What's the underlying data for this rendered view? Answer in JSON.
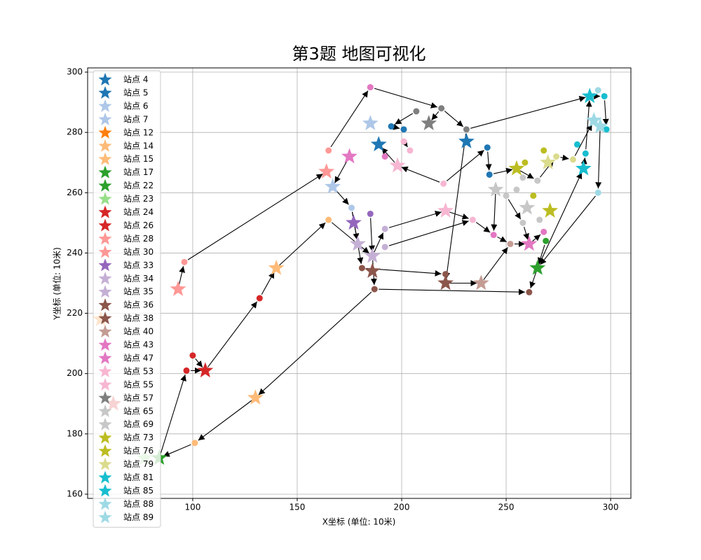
{
  "chart_data": {
    "type": "scatter",
    "title": "第3题 地图可视化",
    "xlabel": "X坐标 (单位: 10米)",
    "ylabel": "Y坐标 (单位: 10米)",
    "xlim": [
      49.7,
      309.7
    ],
    "ylim": [
      158.6,
      301.4
    ],
    "xticks": [
      100,
      150,
      200,
      250,
      300
    ],
    "yticks": [
      160,
      180,
      200,
      220,
      240,
      260,
      280,
      300
    ],
    "grid": true,
    "legend": "upper left",
    "series": [
      {
        "name": "站点 4",
        "color": "#1f77b4",
        "x": [
          189
        ],
        "values": [
          276
        ]
      },
      {
        "name": "站点 5",
        "color": "#1f77b4",
        "x": [
          231
        ],
        "values": [
          277
        ]
      },
      {
        "name": "站点 6",
        "color": "#aec7e8",
        "x": [
          185
        ],
        "values": [
          283
        ]
      },
      {
        "name": "站点 7",
        "color": "#aec7e8",
        "x": [
          167
        ],
        "values": [
          262
        ]
      },
      {
        "name": "站点 12",
        "color": "#ff7f0e",
        "x": [
          56
        ],
        "values": [
          218
        ]
      },
      {
        "name": "站点 14",
        "color": "#ffbb78",
        "x": [
          140
        ],
        "values": [
          235
        ]
      },
      {
        "name": "站点 15",
        "color": "#ffbb78",
        "x": [
          130
        ],
        "values": [
          192
        ]
      },
      {
        "name": "站点 17",
        "color": "#2ca02c",
        "x": [
          265
        ],
        "values": [
          235
        ]
      },
      {
        "name": "站点 22",
        "color": "#2ca02c",
        "x": [
          84
        ],
        "values": [
          172
        ]
      },
      {
        "name": "站点 23",
        "color": "#98df8a",
        "x": [
          77
        ],
        "values": [
          172
        ]
      },
      {
        "name": "站点 24",
        "color": "#d62728",
        "x": [
          106
        ],
        "values": [
          201
        ]
      },
      {
        "name": "站点 26",
        "color": "#d62728",
        "x": [
          62
        ],
        "values": [
          190
        ]
      },
      {
        "name": "站点 28",
        "color": "#ff9896",
        "x": [
          93
        ],
        "values": [
          228
        ]
      },
      {
        "name": "站点 30",
        "color": "#ff9896",
        "x": [
          164
        ],
        "values": [
          267
        ]
      },
      {
        "name": "站点 33",
        "color": "#9467bd",
        "x": [
          177
        ],
        "values": [
          250
        ]
      },
      {
        "name": "站点 34",
        "color": "#c5b0d5",
        "x": [
          179
        ],
        "values": [
          243
        ]
      },
      {
        "name": "站点 35",
        "color": "#c5b0d5",
        "x": [
          186
        ],
        "values": [
          239
        ]
      },
      {
        "name": "站点 36",
        "color": "#8c564b",
        "x": [
          186
        ],
        "values": [
          234
        ]
      },
      {
        "name": "站点 38",
        "color": "#8c564b",
        "x": [
          221
        ],
        "values": [
          230
        ]
      },
      {
        "name": "站点 40",
        "color": "#c49c94",
        "x": [
          238
        ],
        "values": [
          230
        ]
      },
      {
        "name": "站点 43",
        "color": "#e377c2",
        "x": [
          175
        ],
        "values": [
          272
        ]
      },
      {
        "name": "站点 47",
        "color": "#e377c2",
        "x": [
          261
        ],
        "values": [
          243
        ]
      },
      {
        "name": "站点 53",
        "color": "#f7b6d2",
        "x": [
          198
        ],
        "values": [
          269
        ]
      },
      {
        "name": "站点 55",
        "color": "#f7b6d2",
        "x": [
          221
        ],
        "values": [
          254
        ]
      },
      {
        "name": "站点 57",
        "color": "#7f7f7f",
        "x": [
          213
        ],
        "values": [
          283
        ]
      },
      {
        "name": "站点 65",
        "color": "#c7c7c7",
        "x": [
          245
        ],
        "values": [
          261
        ]
      },
      {
        "name": "站点 69",
        "color": "#c7c7c7",
        "x": [
          260
        ],
        "values": [
          255
        ]
      },
      {
        "name": "站点 73",
        "color": "#bcbd22",
        "x": [
          255
        ],
        "values": [
          268
        ]
      },
      {
        "name": "站点 76",
        "color": "#bcbd22",
        "x": [
          271
        ],
        "values": [
          254
        ]
      },
      {
        "name": "站点 79",
        "color": "#dbdb8d",
        "x": [
          270
        ],
        "values": [
          270
        ]
      },
      {
        "name": "站点 81",
        "color": "#17becf",
        "x": [
          290
        ],
        "values": [
          292
        ]
      },
      {
        "name": "站点 85",
        "color": "#17becf",
        "x": [
          287
        ],
        "values": [
          268
        ]
      },
      {
        "name": "站点 88",
        "color": "#9edae5",
        "x": [
          292
        ],
        "values": [
          284
        ]
      },
      {
        "name": "站点 89",
        "color": "#9edae5",
        "x": [
          295
        ],
        "values": [
          282
        ]
      }
    ],
    "nodes": {
      "x": [
        185,
        219,
        207,
        231,
        195,
        201,
        241,
        242,
        165,
        192,
        201,
        204,
        220,
        165,
        176,
        185,
        192,
        192,
        181,
        187,
        221,
        261,
        234,
        244,
        252,
        269,
        268,
        258,
        250,
        255,
        265,
        258,
        266,
        263,
        259,
        268,
        274,
        282,
        284,
        288,
        294,
        297,
        294,
        298,
        96,
        132,
        100,
        97,
        101
      ],
      "y": [
        295,
        288,
        287,
        281,
        282,
        281,
        275,
        266,
        274,
        272,
        277,
        274,
        263,
        251,
        255,
        253,
        248,
        242,
        235,
        228,
        233,
        227,
        251,
        246,
        243,
        244,
        247,
        250,
        259,
        261,
        264,
        265,
        251,
        259,
        270,
        274,
        272,
        271,
        276,
        273,
        260,
        292,
        294,
        281,
        237,
        225,
        206,
        201,
        177
      ],
      "colors": [
        "#e377c2",
        "#7f7f7f",
        "#7f7f7f",
        "#7f7f7f",
        "#1f77b4",
        "#1f77b4",
        "#1f77b4",
        "#1f77b4",
        "#ff9896",
        "#e377c2",
        "#f7b6d2",
        "#f7b6d2",
        "#f7b6d2",
        "#ffbb78",
        "#aec7e8",
        "#9467bd",
        "#c5b0d5",
        "#c5b0d5",
        "#8c564b",
        "#8c564b",
        "#8c564b",
        "#8c564b",
        "#f7b6d2",
        "#e377c2",
        "#c49c94",
        "#2ca02c",
        "#e377c2",
        "#c7c7c7",
        "#c7c7c7",
        "#c7c7c7",
        "#c7c7c7",
        "#c7c7c7",
        "#c7c7c7",
        "#bcbd22",
        "#bcbd22",
        "#bcbd22",
        "#dbdb8d",
        "#dbdb8d",
        "#17becf",
        "#17becf",
        "#9edae5",
        "#17becf",
        "#9edae5",
        "#17becf",
        "#ff9896",
        "#d62728",
        "#d62728",
        "#d62728",
        "#ffbb78"
      ]
    },
    "edge_color": "#000000",
    "edges": [
      [
        93,
        228,
        96,
        237
      ],
      [
        96,
        237,
        164,
        267
      ],
      [
        165,
        274,
        185,
        295
      ],
      [
        185,
        295,
        219,
        288
      ],
      [
        219,
        288,
        231,
        281
      ],
      [
        231,
        281,
        290,
        292
      ],
      [
        290,
        292,
        297,
        292
      ],
      [
        297,
        292,
        298,
        281
      ],
      [
        295,
        282,
        294,
        260
      ],
      [
        294,
        260,
        265,
        235
      ],
      [
        265,
        235,
        261,
        227
      ],
      [
        187,
        228,
        261,
        227
      ],
      [
        221,
        230,
        238,
        230
      ],
      [
        238,
        230,
        252,
        243
      ],
      [
        181,
        235,
        221,
        233
      ],
      [
        187,
        228,
        130,
        192
      ],
      [
        130,
        192,
        101,
        177
      ],
      [
        101,
        177,
        84,
        172
      ],
      [
        84,
        172,
        97,
        201
      ],
      [
        97,
        201,
        106,
        201
      ],
      [
        100,
        206,
        106,
        201
      ],
      [
        106,
        201,
        132,
        225
      ],
      [
        132,
        225,
        140,
        235
      ],
      [
        140,
        235,
        165,
        251
      ],
      [
        165,
        251,
        186,
        239
      ],
      [
        207,
        287,
        195,
        282
      ],
      [
        195,
        282,
        201,
        281
      ],
      [
        231,
        281,
        221,
        230
      ],
      [
        175,
        272,
        167,
        262
      ],
      [
        167,
        262,
        176,
        255
      ],
      [
        176,
        255,
        179,
        243
      ],
      [
        185,
        253,
        186,
        239
      ],
      [
        186,
        239,
        187,
        228
      ],
      [
        186,
        239,
        192,
        248
      ],
      [
        192,
        248,
        221,
        254
      ],
      [
        221,
        254,
        234,
        251
      ],
      [
        234,
        251,
        244,
        246
      ],
      [
        244,
        246,
        252,
        243
      ],
      [
        252,
        243,
        261,
        243
      ],
      [
        261,
        243,
        268,
        247
      ],
      [
        269,
        244,
        265,
        235
      ],
      [
        265,
        235,
        287,
        268
      ],
      [
        287,
        268,
        288,
        273
      ],
      [
        288,
        273,
        290,
        292
      ],
      [
        245,
        261,
        244,
        246
      ],
      [
        250,
        259,
        258,
        250
      ],
      [
        258,
        250,
        261,
        243
      ],
      [
        241,
        275,
        242,
        266
      ],
      [
        242,
        266,
        255,
        268
      ],
      [
        255,
        268,
        265,
        264
      ],
      [
        265,
        264,
        274,
        272
      ],
      [
        274,
        272,
        282,
        271
      ],
      [
        282,
        271,
        292,
        284
      ],
      [
        220,
        263,
        241,
        275
      ],
      [
        220,
        263,
        198,
        269
      ],
      [
        198,
        269,
        189,
        276
      ],
      [
        201,
        277,
        204,
        274
      ],
      [
        219,
        288,
        213,
        283
      ],
      [
        176,
        255,
        181,
        235
      ],
      [
        192,
        242,
        234,
        251
      ]
    ]
  }
}
